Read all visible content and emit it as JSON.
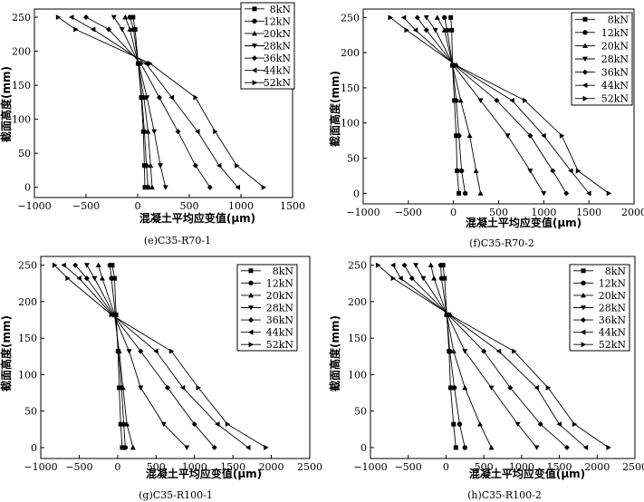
{
  "figure": {
    "legend_labels": [
      "8kN",
      "12kN",
      "20kN",
      "28kN",
      "36kN",
      "44kN",
      "52kN"
    ],
    "marker_order": [
      "square",
      "circle",
      "triangle-up",
      "triangle-down",
      "diamond",
      "triangle-left",
      "triangle-right"
    ],
    "line_color": "#000000"
  },
  "chart_data": [
    {
      "type": "line",
      "caption": "(e)C35-R70-1",
      "xlabel": "混凝土平均应变值(μm)",
      "ylabel": "截面高度(mm)",
      "xlim": [
        -1000,
        1500
      ],
      "ylim": [
        -15,
        262
      ],
      "xticks": [
        -1000,
        -500,
        0,
        500,
        1000,
        1500
      ],
      "yticks": [
        0,
        50,
        100,
        150,
        200,
        250
      ],
      "legend_position": "top-right",
      "y": [
        0,
        32,
        82,
        132,
        182,
        232,
        250
      ],
      "series": [
        {
          "name": "8kN",
          "marker": "square",
          "x": [
            70,
            65,
            55,
            35,
            5,
            -25,
            -45
          ]
        },
        {
          "name": "12kN",
          "marker": "circle",
          "x": [
            100,
            85,
            65,
            40,
            5,
            -40,
            -75
          ]
        },
        {
          "name": "20kN",
          "marker": "triangle-up",
          "x": [
            140,
            125,
            100,
            60,
            5,
            -75,
            -120
          ]
        },
        {
          "name": "28kN",
          "marker": "triangle-down",
          "x": [
            270,
            220,
            160,
            90,
            10,
            -150,
            -230
          ]
        },
        {
          "name": "36kN",
          "marker": "diamond",
          "x": [
            700,
            560,
            390,
            210,
            30,
            -280,
            -500
          ]
        },
        {
          "name": "44kN",
          "marker": "triangle-left",
          "x": [
            970,
            790,
            580,
            330,
            80,
            -430,
            -640
          ]
        },
        {
          "name": "52kN",
          "marker": "triangle-right",
          "x": [
            1220,
            960,
            750,
            560,
            120,
            -600,
            -770
          ]
        }
      ]
    },
    {
      "type": "line",
      "caption": "(f)C35-R70-2",
      "xlabel": "混凝土平均应变值(μm)",
      "ylabel": "截面高度(mm)",
      "xlim": [
        -1000,
        2000
      ],
      "ylim": [
        -15,
        262
      ],
      "xticks": [
        -1000,
        -500,
        0,
        500,
        1000,
        1500,
        2000
      ],
      "yticks": [
        0,
        50,
        100,
        150,
        200,
        250
      ],
      "legend_position": "top-right",
      "y": [
        0,
        32,
        82,
        132,
        182,
        232,
        250
      ],
      "series": [
        {
          "name": "8kN",
          "marker": "square",
          "x": [
            60,
            40,
            30,
            10,
            -10,
            -20,
            -30
          ]
        },
        {
          "name": "12kN",
          "marker": "circle",
          "x": [
            130,
            90,
            60,
            30,
            -10,
            -70,
            -100
          ]
        },
        {
          "name": "20kN",
          "marker": "triangle-up",
          "x": [
            300,
            250,
            180,
            80,
            -10,
            -100,
            -180
          ]
        },
        {
          "name": "28kN",
          "marker": "triangle-down",
          "x": [
            1000,
            850,
            600,
            300,
            0,
            -200,
            -300
          ]
        },
        {
          "name": "36kN",
          "marker": "diamond",
          "x": [
            1250,
            1100,
            850,
            480,
            10,
            -300,
            -400
          ]
        },
        {
          "name": "44kN",
          "marker": "triangle-left",
          "x": [
            1500,
            1300,
            1000,
            650,
            20,
            -420,
            -550
          ]
        },
        {
          "name": "52kN",
          "marker": "triangle-right",
          "x": [
            1720,
            1380,
            1200,
            790,
            30,
            -520,
            -700
          ]
        }
      ]
    },
    {
      "type": "line",
      "caption": "(g)C35-R100-1",
      "xlabel": "混凝土平均应变值(μm)",
      "ylabel": "截面高度(mm)",
      "xlim": [
        -1000,
        2500
      ],
      "ylim": [
        -15,
        262
      ],
      "xticks": [
        -1000,
        -500,
        0,
        500,
        1000,
        1500,
        2000,
        2500
      ],
      "yticks": [
        0,
        50,
        100,
        150,
        200,
        250
      ],
      "legend_position": "top-right",
      "y": [
        0,
        32,
        82,
        132,
        182,
        232,
        250
      ],
      "series": [
        {
          "name": "8kN",
          "marker": "square",
          "x": [
            60,
            40,
            20,
            5,
            -20,
            -40,
            -70
          ]
        },
        {
          "name": "12kN",
          "marker": "circle",
          "x": [
            100,
            80,
            50,
            10,
            -30,
            -80,
            -100
          ]
        },
        {
          "name": "20kN",
          "marker": "triangle-up",
          "x": [
            200,
            120,
            70,
            20,
            -40,
            -200,
            -250
          ]
        },
        {
          "name": "28kN",
          "marker": "triangle-down",
          "x": [
            900,
            600,
            300,
            150,
            -50,
            -300,
            -400
          ]
        },
        {
          "name": "36kN",
          "marker": "diamond",
          "x": [
            1260,
            1000,
            650,
            300,
            -60,
            -400,
            -550
          ]
        },
        {
          "name": "44kN",
          "marker": "triangle-left",
          "x": [
            1700,
            1300,
            850,
            500,
            -70,
            -500,
            -700
          ]
        },
        {
          "name": "52kN",
          "marker": "triangle-right",
          "x": [
            1930,
            1430,
            1050,
            700,
            -80,
            -650,
            -820
          ]
        }
      ]
    },
    {
      "type": "line",
      "caption": "(h)C35-R100-2",
      "xlabel": "混凝土平均应变值(μm)",
      "ylabel": "截面高度(mm)",
      "xlim": [
        -1000,
        2500
      ],
      "ylim": [
        -15,
        262
      ],
      "xticks": [
        -1000,
        -500,
        0,
        500,
        1000,
        1500,
        2000,
        2500
      ],
      "yticks": [
        0,
        50,
        100,
        150,
        200,
        250
      ],
      "legend_position": "top-right",
      "y": [
        0,
        32,
        82,
        132,
        182,
        232,
        250
      ],
      "series": [
        {
          "name": "8kN",
          "marker": "square",
          "x": [
            130,
            100,
            60,
            40,
            10,
            -20,
            -40
          ]
        },
        {
          "name": "12kN",
          "marker": "circle",
          "x": [
            250,
            180,
            110,
            50,
            10,
            -60,
            -70
          ]
        },
        {
          "name": "20kN",
          "marker": "triangle-up",
          "x": [
            600,
            450,
            250,
            100,
            10,
            -160,
            -200
          ]
        },
        {
          "name": "28kN",
          "marker": "triangle-down",
          "x": [
            1200,
            950,
            600,
            250,
            20,
            -300,
            -400
          ]
        },
        {
          "name": "36kN",
          "marker": "diamond",
          "x": [
            1600,
            1250,
            850,
            500,
            30,
            -450,
            -550
          ]
        },
        {
          "name": "44kN",
          "marker": "triangle-left",
          "x": [
            1850,
            1500,
            1200,
            700,
            40,
            -600,
            -700
          ]
        },
        {
          "name": "52kN",
          "marker": "triangle-right",
          "x": [
            2150,
            1700,
            1350,
            900,
            50,
            -700,
            -900
          ]
        }
      ]
    }
  ]
}
